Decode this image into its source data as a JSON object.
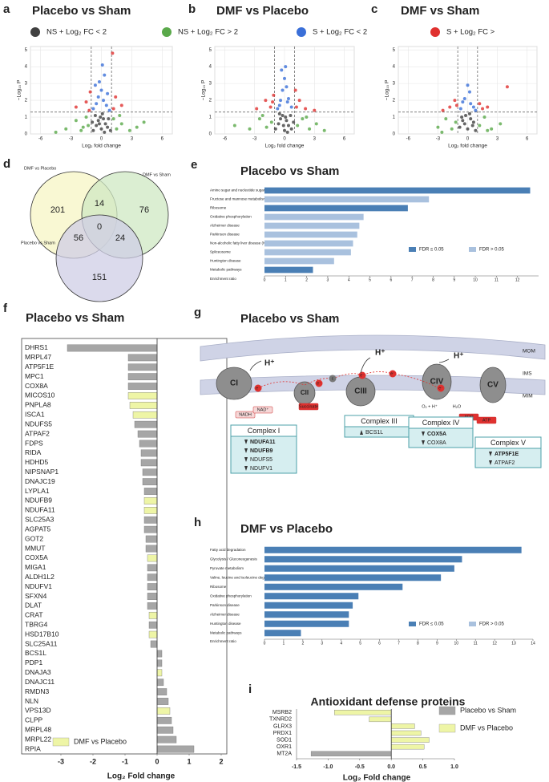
{
  "chart_data": [
    {
      "panel": "a",
      "type": "scatter",
      "title": "Placebo vs Sham",
      "xlabel": "Log₂ fold change",
      "ylabel": "−Log₁₀ P",
      "xlim": [
        -7,
        7
      ],
      "ylim": [
        0,
        5.2
      ],
      "xticks": [
        -6,
        -3,
        0,
        3,
        6
      ],
      "yticks": [
        0,
        1,
        2,
        3,
        4,
        5
      ],
      "grid": true,
      "thresholds": {
        "x": [
          -1,
          1
        ],
        "y": 1.3
      },
      "series": [
        {
          "name": "NS + Log₂ FC < 2",
          "color": "#404040",
          "x": [
            -0.8,
            -0.5,
            -0.3,
            -0.1,
            0,
            0.2,
            0.4,
            0.6,
            0.9,
            -0.6,
            0.1,
            0.3,
            -0.2,
            0.7,
            -0.9
          ],
          "values": [
            0.2,
            0.5,
            0.8,
            1.0,
            0.3,
            0.9,
            0.6,
            0.4,
            0.2,
            1.1,
            1.2,
            0.1,
            0.6,
            0.9,
            0.7
          ]
        },
        {
          "name": "NS + Log₂ FC > 2",
          "color": "#5aa94a",
          "x": [
            -3.5,
            -2.5,
            -2,
            -1.5,
            -1.3,
            1.2,
            1.5,
            2,
            2.8,
            3.5,
            -4.5,
            4.2,
            -1.8,
            1.8
          ],
          "values": [
            0.3,
            0.8,
            0.2,
            1.0,
            0.5,
            0.9,
            0.3,
            0.6,
            0.2,
            0.4,
            0.1,
            0.7,
            0.4,
            1.1
          ]
        },
        {
          "name": "S + Log₂ FC < 2",
          "color": "#3a6fd8",
          "x": [
            -0.8,
            -0.5,
            -0.3,
            0,
            0.2,
            0.5,
            0.8,
            -0.2,
            0.3,
            0.1,
            -0.6,
            0.6
          ],
          "values": [
            1.5,
            1.8,
            2.2,
            2.6,
            2.0,
            1.7,
            1.4,
            3.1,
            3.5,
            4.1,
            2.9,
            2.4
          ]
        },
        {
          "name": "S + Log₂ FC >",
          "color": "#e0312f",
          "x": [
            -2.5,
            -1.5,
            -1.2,
            1.2,
            1.4,
            1.1,
            2.0,
            -1.1
          ],
          "values": [
            1.6,
            1.9,
            1.4,
            1.5,
            2.2,
            4.8,
            1.7,
            2.5
          ]
        }
      ]
    },
    {
      "panel": "b",
      "type": "scatter",
      "title": "DMF vs Placebo",
      "xlabel": "Log₂ fold change",
      "ylabel": "−Log₁₀ P",
      "xlim": [
        -7,
        7
      ],
      "ylim": [
        0,
        5.2
      ],
      "xticks": [
        -6,
        -3,
        0,
        3,
        6
      ],
      "yticks": [
        0,
        1,
        2,
        3,
        4,
        5
      ],
      "grid": true,
      "thresholds": {
        "x": [
          -1,
          1
        ],
        "y": 1.3
      },
      "series": [
        {
          "color": "#404040",
          "x": [
            -0.9,
            -0.6,
            -0.4,
            -0.2,
            0,
            0.2,
            0.4,
            0.7,
            0.9,
            -0.5,
            0.1,
            0.3,
            -0.1,
            0.6
          ],
          "values": [
            0.3,
            0.6,
            0.9,
            1.1,
            0.2,
            0.8,
            0.5,
            0.3,
            0.7,
            1.2,
            1.0,
            0.1,
            0.5,
            1.1
          ]
        },
        {
          "color": "#5aa94a",
          "x": [
            -5,
            -3.5,
            -2.5,
            -1.8,
            -1.3,
            1.3,
            1.8,
            2.5,
            3.2,
            4,
            -2.2,
            2.2
          ],
          "values": [
            0.5,
            0.3,
            0.9,
            0.4,
            0.7,
            0.5,
            0.9,
            0.3,
            0.6,
            0.2,
            1.1,
            1.0
          ]
        },
        {
          "color": "#3a6fd8",
          "x": [
            -0.7,
            -0.4,
            -0.2,
            0,
            0.2,
            0.4,
            0.7,
            -0.3,
            0.1,
            0.3,
            -0.5
          ],
          "values": [
            1.5,
            2.0,
            2.6,
            3.3,
            2.8,
            2.1,
            1.6,
            3.8,
            4.0,
            1.9,
            1.7
          ]
        },
        {
          "color": "#e0312f",
          "x": [
            -2.8,
            -1.9,
            -1.4,
            -1.2,
            1.2,
            1.5,
            2.1,
            3.0,
            -1.1,
            1.1
          ],
          "values": [
            1.5,
            2.0,
            1.6,
            1.9,
            1.6,
            2.0,
            1.5,
            1.4,
            2.3,
            2.6
          ]
        }
      ]
    },
    {
      "panel": "c",
      "type": "scatter",
      "title": "DMF vs Sham",
      "xlabel": "Log₂ fold change",
      "ylabel": "−Log₁₀ P",
      "xlim": [
        -7,
        7
      ],
      "ylim": [
        0,
        5.2
      ],
      "xticks": [
        -6,
        -3,
        0,
        3,
        6
      ],
      "yticks": [
        0,
        1,
        2,
        3,
        4,
        5
      ],
      "grid": true,
      "thresholds": {
        "x": [
          -1,
          1
        ],
        "y": 1.3
      },
      "series": [
        {
          "color": "#404040",
          "x": [
            -0.8,
            -0.5,
            -0.2,
            0,
            0.3,
            0.5,
            0.8,
            -0.6,
            0.2,
            -0.3,
            0.6
          ],
          "values": [
            0.4,
            0.8,
            1.1,
            0.3,
            0.9,
            0.5,
            0.2,
            1.0,
            1.2,
            0.6,
            0.7
          ]
        },
        {
          "color": "#5aa94a",
          "x": [
            -3,
            -2.2,
            -1.6,
            -1.2,
            1.2,
            1.7,
            2.4,
            3.3,
            -2.6,
            2.0
          ],
          "values": [
            0.4,
            0.9,
            0.3,
            0.7,
            0.5,
            1.0,
            0.3,
            0.6,
            0.1,
            0.2
          ]
        },
        {
          "color": "#3a6fd8",
          "x": [
            -0.7,
            -0.3,
            0,
            0.3,
            0.6,
            -0.5,
            0.2,
            0.8
          ],
          "values": [
            1.5,
            2.1,
            2.9,
            1.8,
            1.6,
            1.9,
            2.5,
            1.4
          ]
        },
        {
          "color": "#e0312f",
          "x": [
            -1.8,
            -1.3,
            -1.1,
            1.2,
            1.5,
            2.0,
            4.0,
            -2.5
          ],
          "values": [
            1.6,
            2.0,
            1.7,
            1.8,
            1.5,
            1.6,
            2.8,
            1.4
          ]
        }
      ]
    },
    {
      "panel": "e",
      "type": "hbar",
      "title": "Placebo vs Sham",
      "xlabel": "Enrichment ratio",
      "categories": [
        "Amino sugar and nucleotide sugar metabolism",
        "Fructose and mannose metabolism",
        "Ribosome",
        "Oxidative phosphorylation",
        "Alzheimer disease",
        "Parkinson disease",
        "Non-alcoholic fatty liver disease (NAFLD)",
        "Spliceosome",
        "Huntington disease",
        "Metabolic pathways"
      ],
      "xlim": [
        0,
        13
      ],
      "xticks": [
        0,
        1,
        2,
        3,
        4,
        5,
        6,
        7,
        8,
        9,
        10,
        11,
        12
      ],
      "series": [
        {
          "name": "FDR ≤ 0.05",
          "color": "#4a7fb5",
          "values": [
            12.6,
            null,
            6.8,
            null,
            null,
            null,
            null,
            null,
            null,
            2.3
          ]
        },
        {
          "name": "FDR > 0.05",
          "color": "#a9c1de",
          "values": [
            null,
            7.8,
            null,
            4.7,
            4.5,
            4.4,
            4.2,
            4.1,
            3.3,
            null
          ]
        }
      ]
    },
    {
      "panel": "f",
      "type": "hbar",
      "title": "Placebo vs Sham",
      "xlabel": "Log₂ Fold change",
      "categories": [
        "DHRS1",
        "MRPL47",
        "ATP5F1E",
        "MPC1",
        "COX8A",
        "MICOS10",
        "PNPLA8",
        "ISCA1",
        "NDUFS5",
        "ATPAF2",
        "FDPS",
        "RIDA",
        "HDHD5",
        "NIPSNAP1",
        "DNAJC19",
        "LYPLA1",
        "NDUFB9",
        "NDUFA11",
        "SLC25A3",
        "AGPAT5",
        "GOT2",
        "MMUT",
        "COX5A",
        "MIGA1",
        "ALDH1L2",
        "NDUFV1",
        "SFXN4",
        "DLAT",
        "CRAT",
        "TBRG4",
        "HSD17B10",
        "SLC25A11",
        "BCS1L",
        "PDP1",
        "DNAJA3",
        "DNAJC11",
        "RMDN3",
        "NLN",
        "VPS13D",
        "CLPP",
        "MRPL48",
        "MRPL22",
        "RPIA"
      ],
      "xlim": [
        -3,
        2
      ],
      "xticks": [
        -3,
        -2,
        -1,
        0,
        1,
        2
      ],
      "series": [
        {
          "color": "#a6a6a6",
          "values": [
            -2.8,
            -0.9,
            -0.9,
            -0.9,
            -0.9,
            null,
            null,
            null,
            -0.7,
            -0.6,
            -0.55,
            -0.5,
            -0.5,
            -0.45,
            -0.45,
            -0.4,
            null,
            null,
            -0.4,
            -0.4,
            -0.35,
            -0.35,
            null,
            -0.3,
            -0.3,
            -0.3,
            -0.3,
            -0.3,
            null,
            -0.25,
            null,
            -0.2,
            0.15,
            0.15,
            null,
            0.2,
            0.3,
            0.35,
            null,
            0.45,
            0.5,
            0.6,
            1.15
          ]
        },
        {
          "name": "DMF vs Placebo",
          "color": "#eef5a6",
          "values": [
            null,
            null,
            null,
            null,
            null,
            -0.9,
            -0.85,
            -0.75,
            null,
            null,
            null,
            null,
            null,
            null,
            null,
            null,
            -0.4,
            -0.4,
            null,
            null,
            null,
            null,
            -0.3,
            null,
            null,
            null,
            null,
            null,
            -0.25,
            null,
            -0.25,
            null,
            null,
            null,
            0.15,
            null,
            null,
            null,
            0.4,
            null,
            null,
            null,
            null
          ]
        }
      ]
    },
    {
      "panel": "h",
      "type": "hbar",
      "title": "DMF vs Placebo",
      "xlabel": "Enrichment ratio",
      "categories": [
        "Fatty acid degradation",
        "Glycolysis / Gluconeogenesis",
        "Pyruvate metabolism",
        "Valine, leucine and isoleucine degradation",
        "Ribosome",
        "Oxidative phosphorylation",
        "Parkinson disease",
        "Alzheimer disease",
        "Huntington disease",
        "Metabolic pathways"
      ],
      "xlim": [
        0,
        14
      ],
      "xticks": [
        0,
        1,
        2,
        3,
        4,
        5,
        6,
        7,
        8,
        9,
        10,
        11,
        12,
        13,
        14
      ],
      "series": [
        {
          "name": "FDR ≤ 0.05",
          "color": "#4a7fb5",
          "values": [
            13.4,
            10.3,
            9.9,
            9.2,
            7.2,
            4.9,
            4.6,
            4.4,
            4.4,
            1.9
          ]
        },
        {
          "name": "FDR > 0.05",
          "color": "#a9c1de",
          "values": [
            null,
            null,
            null,
            null,
            null,
            null,
            null,
            null,
            null,
            null
          ]
        }
      ]
    },
    {
      "panel": "i",
      "type": "hbar",
      "title": "Antioxidant defense proteins",
      "xlabel": "Log₂ Fold change",
      "categories": [
        "MSRB2",
        "TXNRD2",
        "GLRX3",
        "PRDX1",
        "SOD1",
        "OXR1",
        "MT2A"
      ],
      "xlim": [
        -1.5,
        1.0
      ],
      "xticks": [
        {
          "value": -1.5,
          "label": "-1.5"
        },
        {
          "value": -1.0,
          "label": "-1.0"
        },
        {
          "value": -0.5,
          "label": "-0.5"
        },
        {
          "value": 0,
          "label": "0.0"
        },
        {
          "value": 0.5,
          "label": "0.5"
        },
        {
          "value": 1.0,
          "label": "1.0"
        }
      ],
      "series": [
        {
          "name": "Placebo vs Sham",
          "color": "#a6a6a6",
          "values": [
            null,
            null,
            null,
            null,
            null,
            null,
            -1.27
          ]
        },
        {
          "name": "DMF vs Placebo",
          "color": "#eef5a6",
          "values": [
            -0.9,
            -0.35,
            0.37,
            0.47,
            0.6,
            0.52,
            null
          ]
        }
      ]
    }
  ],
  "venn": {
    "panel": "d",
    "sets": [
      "DMF vs Placebo",
      "DMF vs Sham",
      "Placebo vs Sham"
    ],
    "colors": [
      "#f7f5c4",
      "#cfe8c3",
      "#cfcde6"
    ],
    "regions": [
      201,
      14,
      76,
      0,
      56,
      24,
      151
    ]
  },
  "pathway": {
    "panel": "g",
    "title": "Placebo vs Sham",
    "membranes": [
      "MOM",
      "IMS",
      "MIM"
    ],
    "complexes": [
      "CI",
      "CII",
      "CIII",
      "CIV",
      "CV"
    ],
    "proton": "H⁺",
    "electron": "e⁻",
    "cytochrome": "c",
    "labels": {
      "nadh": "NADH",
      "nad": "NAD⁺",
      "succinate": "Succinate",
      "water_in": "O₂ + H⁺",
      "water_out": "H₂O",
      "adp": "ADP",
      "atp": "ATP",
      "matrix": "Matrix"
    },
    "boxes": [
      {
        "title": "Complex I",
        "items": [
          {
            "name": "NDUFA11",
            "direction": "down",
            "highlight": true
          },
          {
            "name": "NDUFB9",
            "direction": "down",
            "highlight": true
          },
          {
            "name": "NDUFS5",
            "direction": "down",
            "highlight": false
          },
          {
            "name": "NDUFV1",
            "direction": "down",
            "highlight": false
          }
        ]
      },
      {
        "title": "Complex III",
        "items": [
          {
            "name": "BCS1L",
            "direction": "up",
            "highlight": false
          }
        ]
      },
      {
        "title": "Complex IV",
        "items": [
          {
            "name": "COX5A",
            "direction": "down",
            "highlight": true
          },
          {
            "name": "COX8A",
            "direction": "down",
            "highlight": false
          }
        ]
      },
      {
        "title": "Complex V",
        "items": [
          {
            "name": "ATP5F1E",
            "direction": "down",
            "highlight": true
          },
          {
            "name": "ATPAF2",
            "direction": "down",
            "highlight": false
          }
        ]
      }
    ]
  }
}
